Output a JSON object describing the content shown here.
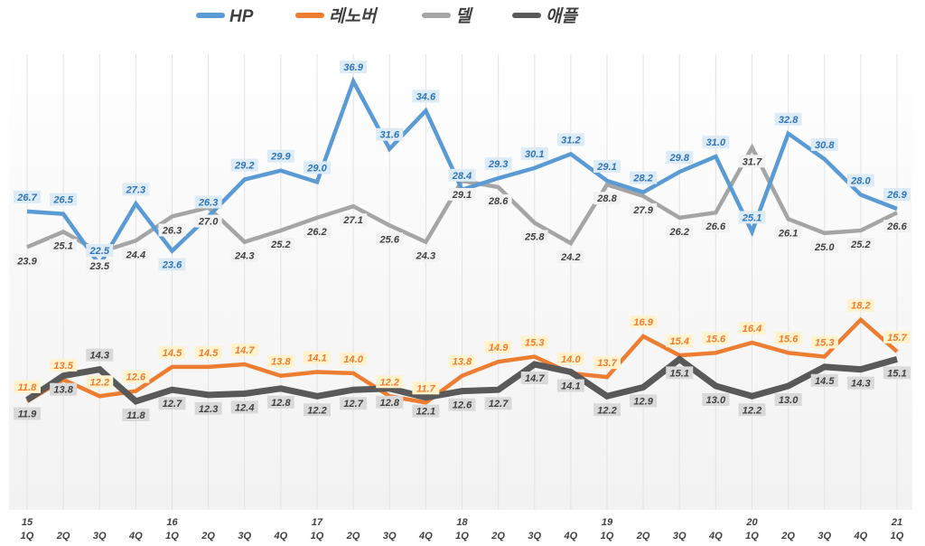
{
  "chart_data": {
    "type": "line",
    "title": "",
    "xlabel": "",
    "ylabel": "",
    "legend_position": "top",
    "grid": "vertical",
    "categories": [
      {
        "year": "15",
        "q": "1Q"
      },
      {
        "year": "",
        "q": "2Q"
      },
      {
        "year": "",
        "q": "3Q"
      },
      {
        "year": "",
        "q": "4Q"
      },
      {
        "year": "16",
        "q": "1Q"
      },
      {
        "year": "",
        "q": "2Q"
      },
      {
        "year": "",
        "q": "3Q"
      },
      {
        "year": "",
        "q": "4Q"
      },
      {
        "year": "17",
        "q": "1Q"
      },
      {
        "year": "",
        "q": "2Q"
      },
      {
        "year": "",
        "q": "3Q"
      },
      {
        "year": "",
        "q": "4Q"
      },
      {
        "year": "18",
        "q": "1Q"
      },
      {
        "year": "",
        "q": "2Q"
      },
      {
        "year": "",
        "q": "3Q"
      },
      {
        "year": "",
        "q": "4Q"
      },
      {
        "year": "19",
        "q": "1Q"
      },
      {
        "year": "",
        "q": "2Q"
      },
      {
        "year": "",
        "q": "3Q"
      },
      {
        "year": "",
        "q": "4Q"
      },
      {
        "year": "20",
        "q": "1Q"
      },
      {
        "year": "",
        "q": "2Q"
      },
      {
        "year": "",
        "q": "3Q"
      },
      {
        "year": "",
        "q": "4Q"
      },
      {
        "year": "21",
        "q": "1Q"
      }
    ],
    "series": [
      {
        "name": "HP",
        "color": "#5b9bd5",
        "label_color": "#2e75b6",
        "label_bg": "#ddebf7",
        "label_pos": "above",
        "values": [
          26.7,
          26.5,
          22.5,
          27.3,
          23.6,
          26.3,
          29.2,
          29.9,
          29.0,
          36.9,
          31.6,
          34.6,
          28.4,
          29.3,
          30.1,
          31.2,
          29.1,
          28.2,
          29.8,
          31.0,
          25.1,
          32.8,
          30.8,
          28.0,
          26.9
        ]
      },
      {
        "name": "레노버",
        "color": "#ed7d31",
        "label_color": "#ed7d31",
        "label_bg": "#fff2cc",
        "label_pos": "above",
        "values": [
          11.8,
          13.5,
          12.2,
          12.6,
          14.5,
          14.5,
          14.7,
          13.8,
          14.1,
          14.0,
          12.2,
          11.7,
          13.8,
          14.9,
          15.3,
          14.0,
          13.7,
          16.9,
          15.4,
          15.6,
          16.4,
          15.6,
          15.3,
          18.2,
          15.7
        ]
      },
      {
        "name": "델",
        "color": "#a5a5a5",
        "label_color": "#404040",
        "label_bg": "#f2f2f2",
        "label_pos": "below",
        "values": [
          23.9,
          25.1,
          23.5,
          24.4,
          26.3,
          27.0,
          24.3,
          25.2,
          26.2,
          27.1,
          25.6,
          24.3,
          29.1,
          28.6,
          25.8,
          24.2,
          28.8,
          27.9,
          26.2,
          26.6,
          31.7,
          26.1,
          25.0,
          25.2,
          26.6
        ]
      },
      {
        "name": "애플",
        "color": "#595959",
        "label_color": "#404040",
        "label_bg": "#d9d9d9",
        "label_pos": "below",
        "values": [
          11.9,
          13.8,
          14.3,
          11.8,
          12.7,
          12.3,
          12.4,
          12.8,
          12.2,
          12.7,
          12.8,
          12.1,
          12.6,
          12.7,
          14.7,
          14.1,
          12.2,
          12.9,
          15.1,
          13.0,
          12.2,
          13.0,
          14.5,
          14.3,
          15.1
        ]
      }
    ]
  }
}
